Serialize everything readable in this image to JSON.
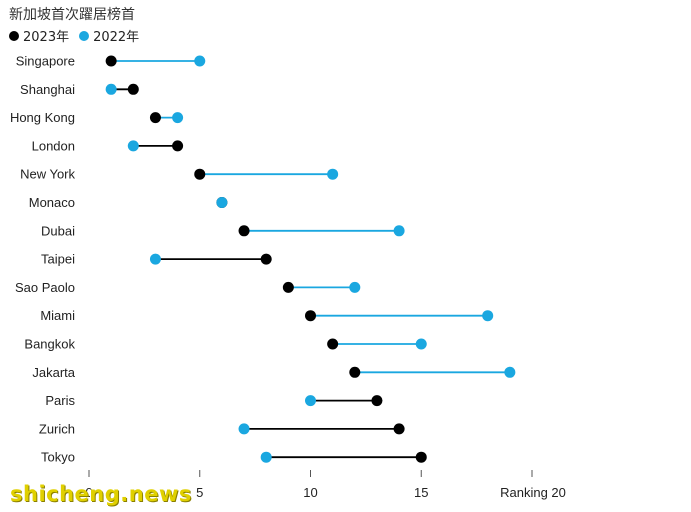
{
  "title": "新加坡首次躍居榜首",
  "legend": [
    {
      "label": "2023年",
      "color": "#000000"
    },
    {
      "label": "2022年",
      "color": "#1aa7e0"
    }
  ],
  "watermark": "shicheng.news",
  "chart_data": {
    "type": "dumbbell",
    "title": "新加坡首次躍居榜首",
    "xlabel": "Ranking",
    "xlim": [
      0,
      20
    ],
    "xticks": [
      0,
      5,
      10,
      15,
      20
    ],
    "xtick_labels": [
      "0",
      "5",
      "10",
      "15",
      "Ranking 20"
    ],
    "categories": [
      "Singapore",
      "Shanghai",
      "Hong Kong",
      "London",
      "New York",
      "Monaco",
      "Dubai",
      "Taipei",
      "Sao Paolo",
      "Miami",
      "Bangkok",
      "Jakarta",
      "Paris",
      "Zurich",
      "Tokyo"
    ],
    "series": [
      {
        "name": "2023年",
        "color": "#000000",
        "values": [
          1,
          2,
          3,
          4,
          5,
          6,
          7,
          8,
          9,
          10,
          11,
          12,
          13,
          14,
          15
        ]
      },
      {
        "name": "2022年",
        "color": "#1aa7e0",
        "values": [
          5,
          1,
          4,
          2,
          11,
          6,
          14,
          3,
          12,
          18,
          15,
          19,
          10,
          7,
          8
        ]
      }
    ]
  }
}
